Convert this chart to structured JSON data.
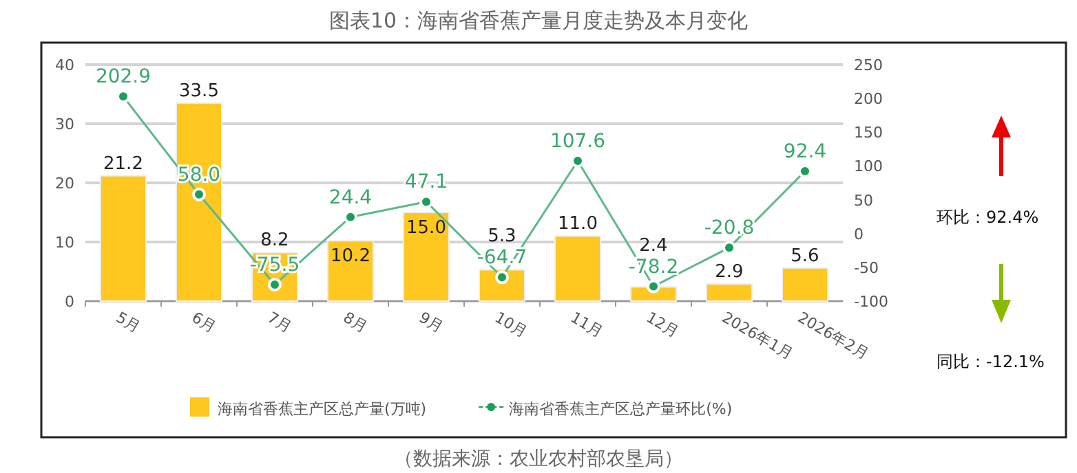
{
  "chart_data": {
    "type": "bar",
    "title": "图表10：海南省香蕉产量月度走势及本月变化",
    "categories": [
      "5月",
      "6月",
      "7月",
      "8月",
      "9月",
      "10月",
      "11月",
      "12月",
      "2026年1月",
      "2026年2月"
    ],
    "series": [
      {
        "name": "海南省香蕉主产区总产量(万吨)",
        "color": "#ffc820",
        "values": [
          21.2,
          33.5,
          8.2,
          10.2,
          15.0,
          5.3,
          11.0,
          2.4,
          2.9,
          5.6
        ],
        "value_labels": [
          "21.2",
          "33.5",
          "8.2",
          "10.2",
          "15.0",
          "5.3",
          "11.0",
          "2.4",
          "2.9",
          "5.6"
        ]
      },
      {
        "name": "海南省香蕉主产区总产量环比(%)",
        "type": "line",
        "axis": "y2",
        "color": "#1a9e5a",
        "values": [
          202.9,
          58.0,
          -75.5,
          24.4,
          47.1,
          -64.7,
          107.6,
          -78.2,
          -20.8,
          92.4
        ],
        "value_labels": [
          "202.9",
          "58.0",
          "-75.5",
          "24.4",
          "47.1",
          "-64.7",
          "107.6",
          "-78.2",
          "-20.8",
          "92.4"
        ]
      }
    ],
    "ylim": [
      0,
      40
    ],
    "yticks": [
      0,
      10,
      20,
      30,
      40
    ],
    "y2lim": [
      -100,
      250
    ],
    "y2ticks": [
      -100,
      -50,
      0,
      50,
      100,
      150,
      200,
      250
    ],
    "grid": "y",
    "legend": "bottom",
    "marker": "circle",
    "annotations": [
      "环比：92.4%",
      "同比：-12.1%",
      "（数据来源：农业农村部农垦局）"
    ]
  }
}
